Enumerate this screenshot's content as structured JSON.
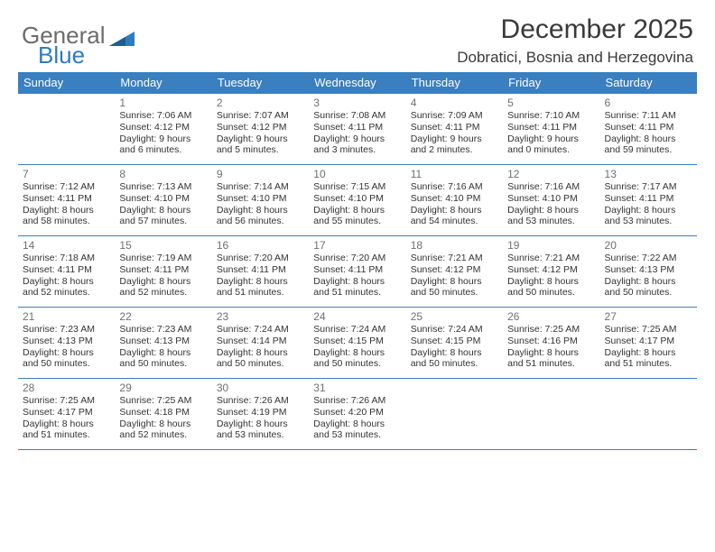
{
  "logo": {
    "text1": "General",
    "text2": "Blue"
  },
  "title": "December 2025",
  "subtitle": "Dobratici, Bosnia and Herzegovina",
  "colors": {
    "header_bg": "#3a7fbf",
    "header_text": "#ffffff",
    "border": "#3a7fbf",
    "daynum": "#707070",
    "body_text": "#333333",
    "logo_general": "#6c6c6c",
    "logo_blue": "#2f7bbf",
    "background": "#ffffff"
  },
  "daysOfWeek": [
    "Sunday",
    "Monday",
    "Tuesday",
    "Wednesday",
    "Thursday",
    "Friday",
    "Saturday"
  ],
  "weeks": [
    [
      null,
      {
        "n": "1",
        "sr": "7:06 AM",
        "ss": "4:12 PM",
        "d1": "9 hours",
        "d2": "and 6 minutes."
      },
      {
        "n": "2",
        "sr": "7:07 AM",
        "ss": "4:12 PM",
        "d1": "9 hours",
        "d2": "and 5 minutes."
      },
      {
        "n": "3",
        "sr": "7:08 AM",
        "ss": "4:11 PM",
        "d1": "9 hours",
        "d2": "and 3 minutes."
      },
      {
        "n": "4",
        "sr": "7:09 AM",
        "ss": "4:11 PM",
        "d1": "9 hours",
        "d2": "and 2 minutes."
      },
      {
        "n": "5",
        "sr": "7:10 AM",
        "ss": "4:11 PM",
        "d1": "9 hours",
        "d2": "and 0 minutes."
      },
      {
        "n": "6",
        "sr": "7:11 AM",
        "ss": "4:11 PM",
        "d1": "8 hours",
        "d2": "and 59 minutes."
      }
    ],
    [
      {
        "n": "7",
        "sr": "7:12 AM",
        "ss": "4:11 PM",
        "d1": "8 hours",
        "d2": "and 58 minutes."
      },
      {
        "n": "8",
        "sr": "7:13 AM",
        "ss": "4:10 PM",
        "d1": "8 hours",
        "d2": "and 57 minutes."
      },
      {
        "n": "9",
        "sr": "7:14 AM",
        "ss": "4:10 PM",
        "d1": "8 hours",
        "d2": "and 56 minutes."
      },
      {
        "n": "10",
        "sr": "7:15 AM",
        "ss": "4:10 PM",
        "d1": "8 hours",
        "d2": "and 55 minutes."
      },
      {
        "n": "11",
        "sr": "7:16 AM",
        "ss": "4:10 PM",
        "d1": "8 hours",
        "d2": "and 54 minutes."
      },
      {
        "n": "12",
        "sr": "7:16 AM",
        "ss": "4:10 PM",
        "d1": "8 hours",
        "d2": "and 53 minutes."
      },
      {
        "n": "13",
        "sr": "7:17 AM",
        "ss": "4:11 PM",
        "d1": "8 hours",
        "d2": "and 53 minutes."
      }
    ],
    [
      {
        "n": "14",
        "sr": "7:18 AM",
        "ss": "4:11 PM",
        "d1": "8 hours",
        "d2": "and 52 minutes."
      },
      {
        "n": "15",
        "sr": "7:19 AM",
        "ss": "4:11 PM",
        "d1": "8 hours",
        "d2": "and 52 minutes."
      },
      {
        "n": "16",
        "sr": "7:20 AM",
        "ss": "4:11 PM",
        "d1": "8 hours",
        "d2": "and 51 minutes."
      },
      {
        "n": "17",
        "sr": "7:20 AM",
        "ss": "4:11 PM",
        "d1": "8 hours",
        "d2": "and 51 minutes."
      },
      {
        "n": "18",
        "sr": "7:21 AM",
        "ss": "4:12 PM",
        "d1": "8 hours",
        "d2": "and 50 minutes."
      },
      {
        "n": "19",
        "sr": "7:21 AM",
        "ss": "4:12 PM",
        "d1": "8 hours",
        "d2": "and 50 minutes."
      },
      {
        "n": "20",
        "sr": "7:22 AM",
        "ss": "4:13 PM",
        "d1": "8 hours",
        "d2": "and 50 minutes."
      }
    ],
    [
      {
        "n": "21",
        "sr": "7:23 AM",
        "ss": "4:13 PM",
        "d1": "8 hours",
        "d2": "and 50 minutes."
      },
      {
        "n": "22",
        "sr": "7:23 AM",
        "ss": "4:13 PM",
        "d1": "8 hours",
        "d2": "and 50 minutes."
      },
      {
        "n": "23",
        "sr": "7:24 AM",
        "ss": "4:14 PM",
        "d1": "8 hours",
        "d2": "and 50 minutes."
      },
      {
        "n": "24",
        "sr": "7:24 AM",
        "ss": "4:15 PM",
        "d1": "8 hours",
        "d2": "and 50 minutes."
      },
      {
        "n": "25",
        "sr": "7:24 AM",
        "ss": "4:15 PM",
        "d1": "8 hours",
        "d2": "and 50 minutes."
      },
      {
        "n": "26",
        "sr": "7:25 AM",
        "ss": "4:16 PM",
        "d1": "8 hours",
        "d2": "and 51 minutes."
      },
      {
        "n": "27",
        "sr": "7:25 AM",
        "ss": "4:17 PM",
        "d1": "8 hours",
        "d2": "and 51 minutes."
      }
    ],
    [
      {
        "n": "28",
        "sr": "7:25 AM",
        "ss": "4:17 PM",
        "d1": "8 hours",
        "d2": "and 51 minutes."
      },
      {
        "n": "29",
        "sr": "7:25 AM",
        "ss": "4:18 PM",
        "d1": "8 hours",
        "d2": "and 52 minutes."
      },
      {
        "n": "30",
        "sr": "7:26 AM",
        "ss": "4:19 PM",
        "d1": "8 hours",
        "d2": "and 53 minutes."
      },
      {
        "n": "31",
        "sr": "7:26 AM",
        "ss": "4:20 PM",
        "d1": "8 hours",
        "d2": "and 53 minutes."
      },
      null,
      null,
      null
    ]
  ],
  "labels": {
    "sunrise": "Sunrise:",
    "sunset": "Sunset:",
    "daylight": "Daylight:"
  }
}
